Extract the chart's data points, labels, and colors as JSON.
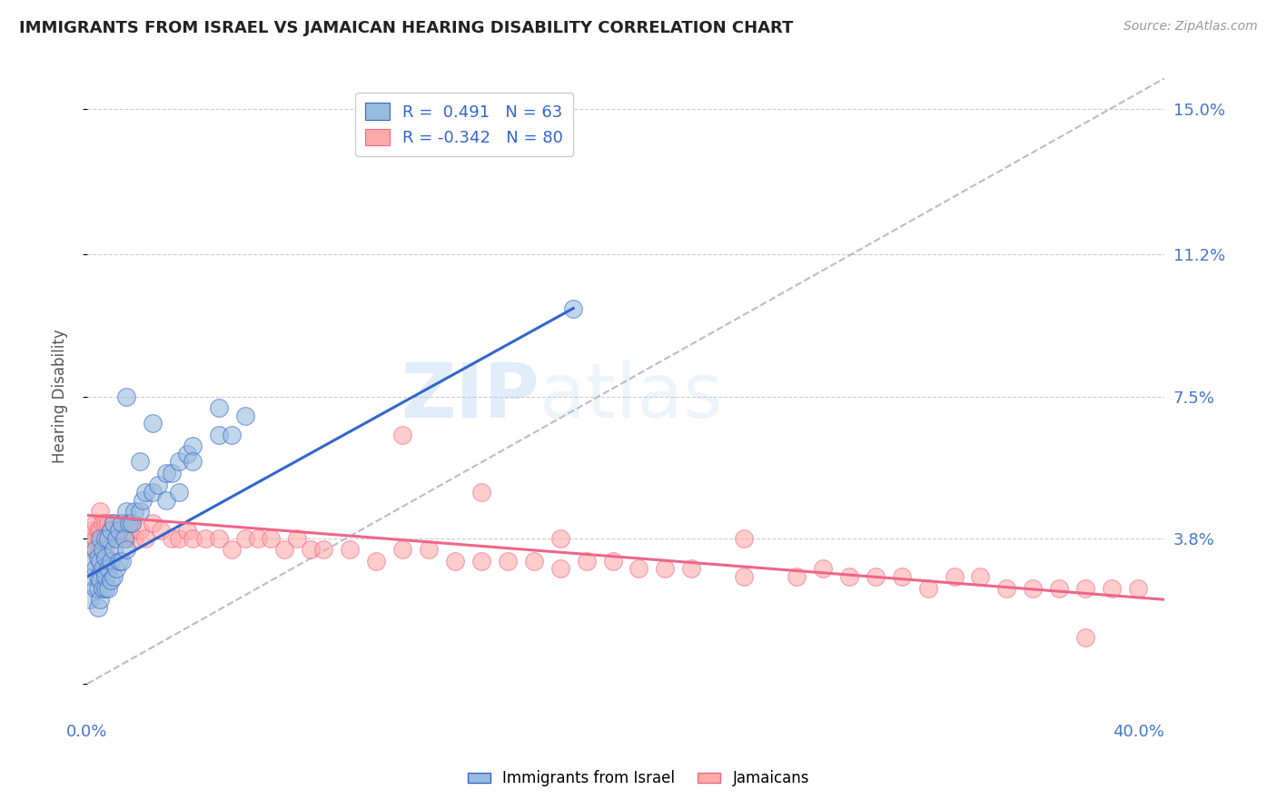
{
  "title": "IMMIGRANTS FROM ISRAEL VS JAMAICAN HEARING DISABILITY CORRELATION CHART",
  "source": "Source: ZipAtlas.com",
  "ylabel": "Hearing Disability",
  "yticks": [
    0.0,
    0.038,
    0.075,
    0.112,
    0.15
  ],
  "ytick_labels": [
    "",
    "3.8%",
    "7.5%",
    "11.2%",
    "15.0%"
  ],
  "xmin": 0.0,
  "xmax": 0.41,
  "ymin": -0.008,
  "ymax": 0.158,
  "legend_R1": "R =  0.491",
  "legend_N1": "N = 63",
  "legend_R2": "R = -0.342",
  "legend_N2": "N = 80",
  "color_blue": "#99BBDD",
  "color_pink": "#FFAAAA",
  "color_blue_line": "#3366CC",
  "color_pink_line": "#EE6688",
  "color_gray_dashed": "#BBBBCC",
  "color_title": "#222222",
  "color_source": "#999999",
  "color_axis_labels": "#4477CC",
  "background_color": "#FFFFFF",
  "blue_line_x0": 0.0,
  "blue_line_y0": 0.028,
  "blue_line_x1": 0.185,
  "blue_line_y1": 0.098,
  "pink_line_x0": 0.0,
  "pink_line_y0": 0.044,
  "pink_line_x1": 0.41,
  "pink_line_y1": 0.022,
  "blue_scatter_x": [
    0.001,
    0.002,
    0.002,
    0.003,
    0.003,
    0.003,
    0.004,
    0.004,
    0.004,
    0.004,
    0.005,
    0.005,
    0.005,
    0.005,
    0.006,
    0.006,
    0.006,
    0.007,
    0.007,
    0.007,
    0.007,
    0.008,
    0.008,
    0.008,
    0.009,
    0.009,
    0.009,
    0.01,
    0.01,
    0.01,
    0.011,
    0.011,
    0.012,
    0.012,
    0.013,
    0.013,
    0.014,
    0.015,
    0.015,
    0.016,
    0.017,
    0.018,
    0.02,
    0.021,
    0.022,
    0.025,
    0.027,
    0.03,
    0.032,
    0.035,
    0.038,
    0.04,
    0.05,
    0.055,
    0.06,
    0.02,
    0.03,
    0.04,
    0.05,
    0.015,
    0.025,
    0.035,
    0.185
  ],
  "blue_scatter_y": [
    0.022,
    0.028,
    0.032,
    0.025,
    0.03,
    0.035,
    0.02,
    0.025,
    0.028,
    0.033,
    0.022,
    0.027,
    0.032,
    0.038,
    0.025,
    0.03,
    0.035,
    0.025,
    0.028,
    0.033,
    0.038,
    0.025,
    0.03,
    0.038,
    0.027,
    0.032,
    0.04,
    0.028,
    0.035,
    0.042,
    0.03,
    0.038,
    0.032,
    0.04,
    0.032,
    0.042,
    0.038,
    0.035,
    0.045,
    0.042,
    0.042,
    0.045,
    0.045,
    0.048,
    0.05,
    0.05,
    0.052,
    0.055,
    0.055,
    0.058,
    0.06,
    0.062,
    0.065,
    0.065,
    0.07,
    0.058,
    0.048,
    0.058,
    0.072,
    0.075,
    0.068,
    0.05,
    0.098
  ],
  "pink_scatter_x": [
    0.001,
    0.002,
    0.002,
    0.003,
    0.003,
    0.004,
    0.004,
    0.005,
    0.005,
    0.005,
    0.006,
    0.006,
    0.007,
    0.007,
    0.008,
    0.008,
    0.009,
    0.01,
    0.01,
    0.011,
    0.012,
    0.013,
    0.014,
    0.015,
    0.015,
    0.016,
    0.017,
    0.018,
    0.02,
    0.022,
    0.025,
    0.028,
    0.032,
    0.035,
    0.038,
    0.04,
    0.045,
    0.05,
    0.055,
    0.06,
    0.065,
    0.07,
    0.075,
    0.08,
    0.085,
    0.09,
    0.1,
    0.11,
    0.12,
    0.13,
    0.14,
    0.15,
    0.16,
    0.17,
    0.18,
    0.19,
    0.2,
    0.21,
    0.22,
    0.23,
    0.25,
    0.27,
    0.28,
    0.29,
    0.3,
    0.31,
    0.32,
    0.33,
    0.34,
    0.35,
    0.36,
    0.37,
    0.38,
    0.39,
    0.4,
    0.12,
    0.15,
    0.18,
    0.25,
    0.38
  ],
  "pink_scatter_y": [
    0.038,
    0.04,
    0.035,
    0.038,
    0.042,
    0.035,
    0.04,
    0.035,
    0.04,
    0.045,
    0.038,
    0.042,
    0.035,
    0.042,
    0.038,
    0.042,
    0.04,
    0.038,
    0.042,
    0.04,
    0.04,
    0.042,
    0.038,
    0.038,
    0.042,
    0.04,
    0.042,
    0.038,
    0.04,
    0.038,
    0.042,
    0.04,
    0.038,
    0.038,
    0.04,
    0.038,
    0.038,
    0.038,
    0.035,
    0.038,
    0.038,
    0.038,
    0.035,
    0.038,
    0.035,
    0.035,
    0.035,
    0.032,
    0.035,
    0.035,
    0.032,
    0.032,
    0.032,
    0.032,
    0.03,
    0.032,
    0.032,
    0.03,
    0.03,
    0.03,
    0.028,
    0.028,
    0.03,
    0.028,
    0.028,
    0.028,
    0.025,
    0.028,
    0.028,
    0.025,
    0.025,
    0.025,
    0.025,
    0.025,
    0.025,
    0.065,
    0.05,
    0.038,
    0.038,
    0.012
  ]
}
